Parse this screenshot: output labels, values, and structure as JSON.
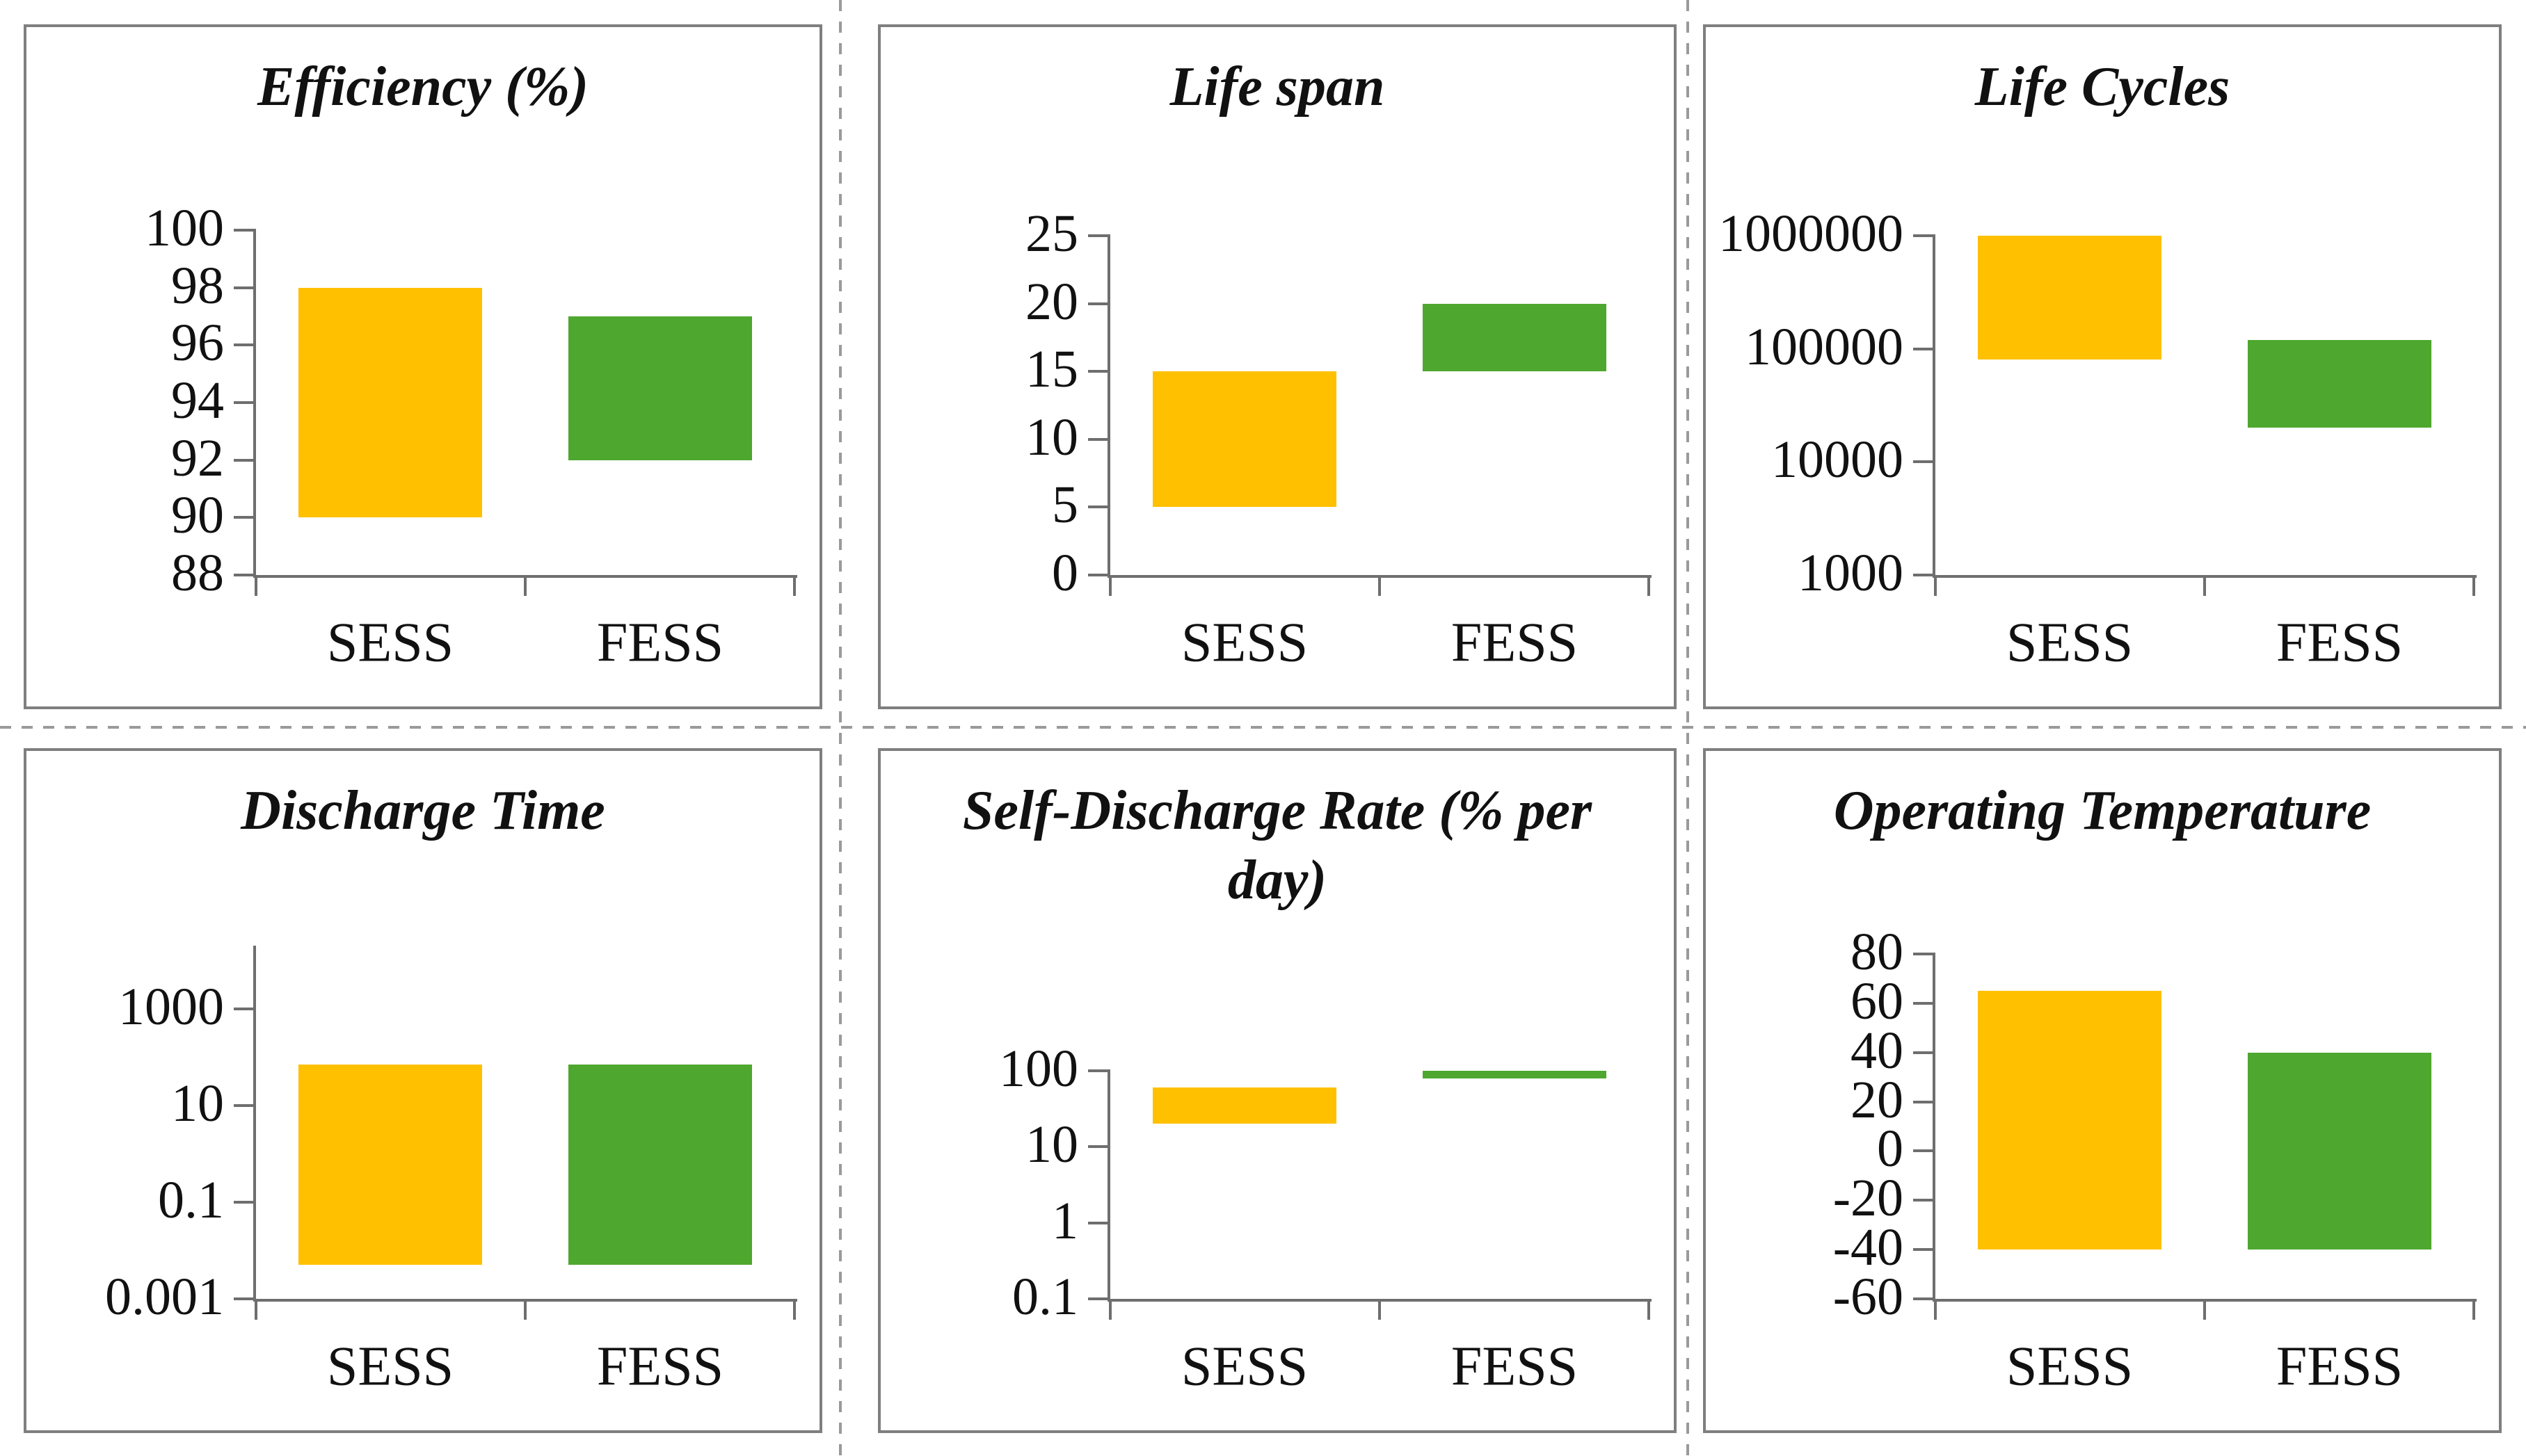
{
  "colors": {
    "sess_bar": "#FFC000",
    "fess_bar": "#4EA72E",
    "axis_line": "#6E6E6E",
    "panel_border": "#7F7F7F",
    "divider": "#9A9A9A",
    "text": "#111111"
  },
  "categories": [
    "SESS",
    "FESS"
  ],
  "chart_data": [
    {
      "id": "efficiency",
      "type": "bar",
      "subtype": "floating-range-column",
      "title": "Efficiency (%)",
      "categories": [
        "SESS",
        "FESS"
      ],
      "series": [
        {
          "name": "SESS",
          "range": [
            90,
            98
          ]
        },
        {
          "name": "FESS",
          "range": [
            92,
            97
          ]
        }
      ],
      "yscale": "linear",
      "ylim": [
        88,
        100
      ],
      "yticks": [
        88,
        90,
        92,
        94,
        96,
        98,
        100
      ],
      "ytick_labels": [
        "88",
        "90",
        "92",
        "94",
        "96",
        "98",
        "100"
      ],
      "grid": false,
      "legend": "none"
    },
    {
      "id": "life-span",
      "type": "bar",
      "subtype": "floating-range-column",
      "title": "Life span",
      "categories": [
        "SESS",
        "FESS"
      ],
      "series": [
        {
          "name": "SESS",
          "range": [
            5,
            15
          ]
        },
        {
          "name": "FESS",
          "range": [
            15,
            20
          ]
        }
      ],
      "yscale": "linear",
      "ylim": [
        0,
        25
      ],
      "yticks": [
        0,
        5,
        10,
        15,
        20,
        25
      ],
      "ytick_labels": [
        "0",
        "5",
        "10",
        "15",
        "20",
        "25"
      ],
      "grid": false,
      "legend": "none"
    },
    {
      "id": "life-cycles",
      "type": "bar",
      "subtype": "floating-range-column",
      "title": "Life Cycles",
      "categories": [
        "SESS",
        "FESS"
      ],
      "series": [
        {
          "name": "SESS",
          "range": [
            80000,
            1000000
          ]
        },
        {
          "name": "FESS",
          "range": [
            20000,
            120000
          ]
        }
      ],
      "yscale": "log",
      "ylim": [
        1000,
        1000000
      ],
      "yticks": [
        1000,
        10000,
        100000,
        1000000
      ],
      "ytick_labels": [
        "1000",
        "10000",
        "100000",
        "1000000"
      ],
      "grid": false,
      "legend": "none"
    },
    {
      "id": "discharge-time",
      "type": "bar",
      "subtype": "floating-range-column",
      "title": "Discharge Time",
      "categories": [
        "SESS",
        "FESS"
      ],
      "series": [
        {
          "name": "SESS",
          "range": [
            0.005,
            70
          ]
        },
        {
          "name": "FESS",
          "range": [
            0.005,
            70
          ]
        }
      ],
      "yscale": "log",
      "ylim": [
        0.001,
        20000
      ],
      "yticks": [
        0.001,
        0.1,
        10,
        1000
      ],
      "ytick_labels": [
        "0.001",
        "0.1",
        "10",
        "1000"
      ],
      "grid": false,
      "legend": "none"
    },
    {
      "id": "self-discharge-rate",
      "type": "bar",
      "subtype": "floating-range-column",
      "title": "Self-Discharge Rate (% per day)",
      "categories": [
        "SESS",
        "FESS"
      ],
      "series": [
        {
          "name": "SESS",
          "range": [
            20,
            60
          ]
        },
        {
          "name": "FESS",
          "range": [
            80,
            100
          ]
        }
      ],
      "yscale": "log",
      "ylim": [
        0.1,
        100
      ],
      "yticks": [
        0.1,
        1,
        10,
        100
      ],
      "ytick_labels": [
        "0.1",
        "1",
        "10",
        "100"
      ],
      "grid": false,
      "legend": "none"
    },
    {
      "id": "operating-temperature",
      "type": "bar",
      "subtype": "floating-range-column",
      "title": "Operating Temperature",
      "categories": [
        "SESS",
        "FESS"
      ],
      "series": [
        {
          "name": "SESS",
          "range": [
            -40,
            65
          ]
        },
        {
          "name": "FESS",
          "range": [
            -40,
            40
          ]
        }
      ],
      "yscale": "linear",
      "ylim": [
        -60,
        80
      ],
      "yticks": [
        -60,
        -40,
        -20,
        0,
        20,
        40,
        60,
        80
      ],
      "ytick_labels": [
        "-60",
        "-40",
        "-20",
        "0",
        "20",
        "40",
        "60",
        "80"
      ],
      "grid": false,
      "legend": "none"
    }
  ]
}
